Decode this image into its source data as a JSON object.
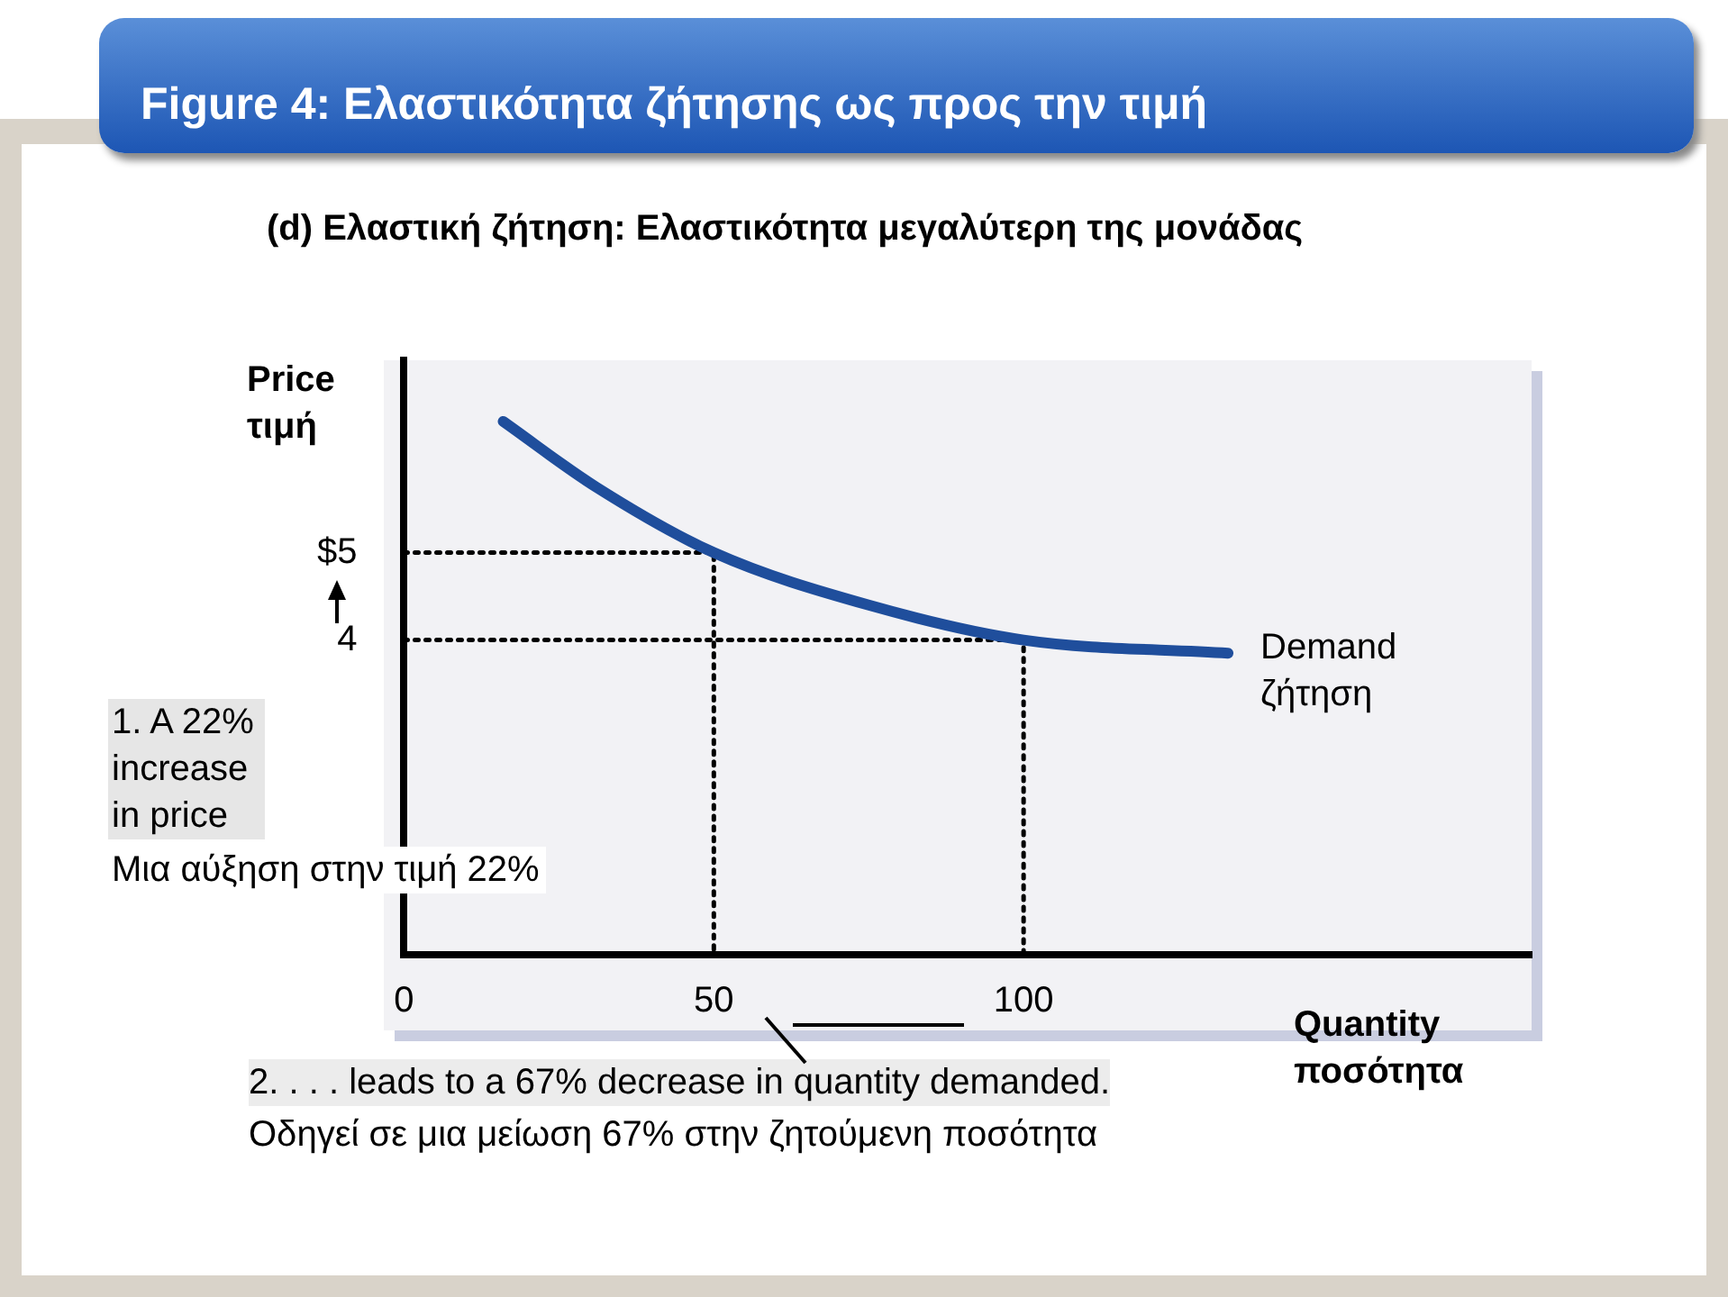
{
  "chart_data": {
    "type": "line",
    "title": "Figure 4: Ελαστικότητα ζήτησης ως προς την τιμή",
    "subtitle": "(d) Ελαστική ζήτηση: Ελαστικότητα μεγαλύτερη της μονάδας",
    "xlabel": "Quantity\nποσότητα",
    "ylabel": "Price\nτιμή",
    "annotations": [
      "1. A 22%\nincrease\nin price",
      "Μια αύξηση στην τιμή 22%",
      "2. . . . leads to a 67% decrease in quantity demanded.",
      "Οδηγεί σε μια μείωση 67% στην ζητούμενη ποσότητα"
    ],
    "series": [
      {
        "name": "Demand\nζήτηση",
        "color": "#1f4e9c",
        "x": [
          16,
          31,
          50,
          75,
          100,
          133
        ],
        "values": [
          6.5,
          5.75,
          5,
          4.4,
          4,
          3.85
        ]
      },
      {
        "type": "line",
        "color": "#000000",
        "line_style": "dotted",
        "x": [
          0,
          50,
          50
        ],
        "values": [
          5,
          5,
          0.4
        ]
      },
      {
        "type": "line",
        "color": "#000000",
        "line_style": "dotted",
        "x": [
          0,
          100,
          100
        ],
        "values": [
          4,
          4,
          0.4
        ]
      }
    ],
    "xlim": [
      0,
      182
    ],
    "ylim": [
      0.4,
      7.2
    ],
    "xticks": [
      0,
      50,
      100
    ],
    "yticks": [
      {
        "value": 4,
        "label": "4"
      },
      {
        "value": 5,
        "label": "$5"
      }
    ],
    "grid": false,
    "marker": "none",
    "line_style": "solid",
    "legend": false
  }
}
